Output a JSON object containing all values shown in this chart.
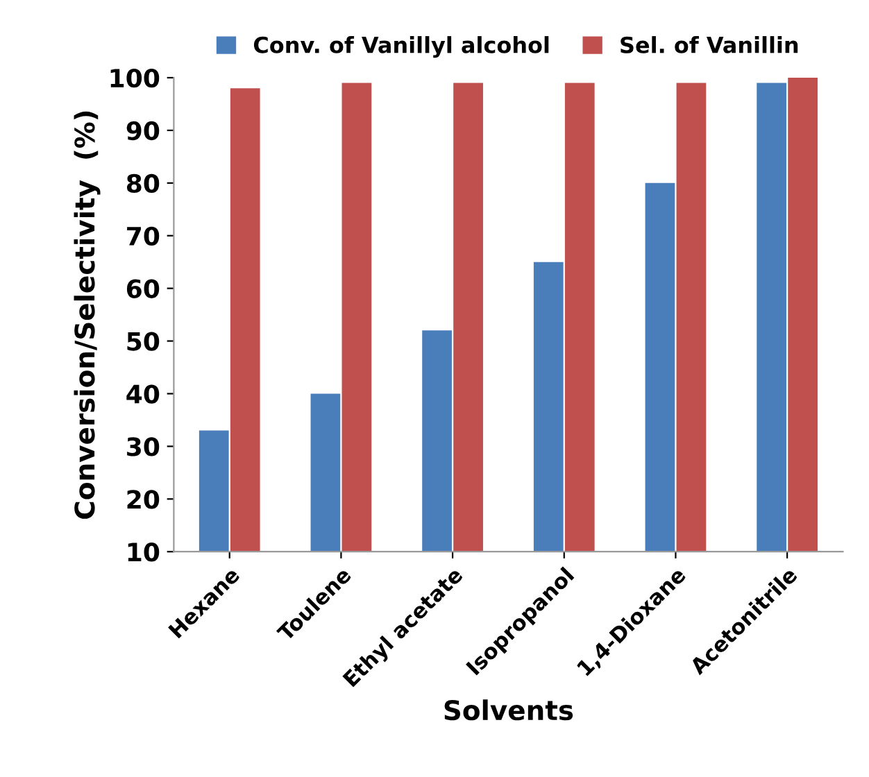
{
  "chart_data": {
    "type": "bar",
    "xlabel": "Solvents",
    "ylabel": "Conversion/Selectivity  (%)",
    "categories": [
      "Hexane",
      "Toulene",
      "Ethyl acetate",
      "Isopropanol",
      "1,4-Dioxane",
      "Acetonitrile"
    ],
    "series": [
      {
        "name": "Conv. of Vanillyl alcohol",
        "color": "#4a7ebb",
        "values": [
          33,
          40,
          52,
          65,
          80,
          99
        ]
      },
      {
        "name": "Sel. of Vanillin",
        "color": "#c0504d",
        "values": [
          98,
          99,
          99,
          99,
          99,
          100
        ]
      }
    ],
    "ylim": [
      10,
      100
    ],
    "yticks": [
      10,
      20,
      30,
      40,
      50,
      60,
      70,
      80,
      90,
      100
    ],
    "grid": false,
    "legend": "top"
  }
}
